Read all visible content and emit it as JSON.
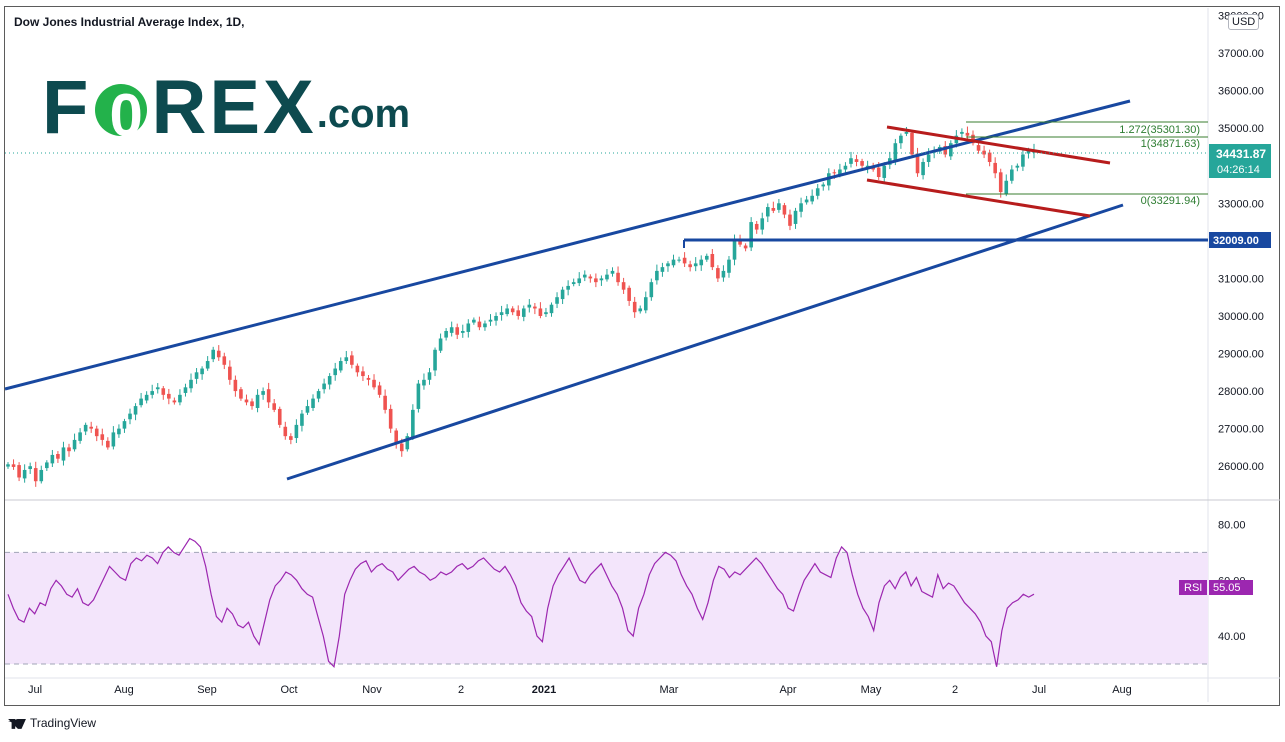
{
  "header": {
    "title": "Dow Jones Industrial Average Index, 1D,"
  },
  "logo": {
    "text_main": "F",
    "text_o": "O",
    "text_rest": "REX",
    "text_suffix": ".com"
  },
  "currency": "USD",
  "footer": {
    "brand": "TradingView"
  },
  "chart_data": {
    "type": "candlestick",
    "title": "Dow Jones Industrial Average Index, 1D,",
    "ylim": [
      25100,
      38200
    ],
    "y_ticks": [
      "38000.00",
      "37000.00",
      "36000.00",
      "35000.00",
      "34000.00",
      "33000.00",
      "32000.00",
      "31000.00",
      "30000.00",
      "29000.00",
      "28000.00",
      "27000.00",
      "26000.00"
    ],
    "x_ticks": [
      "Jul",
      "Aug",
      "Sep",
      "Oct",
      "Nov",
      "2",
      "2021",
      "Mar",
      "Apr",
      "May",
      "2",
      "Jul",
      "Aug"
    ],
    "price": {
      "last": "34431.87",
      "countdown": "04:26:14",
      "closes": [
        26050,
        25980,
        25700,
        25900,
        26000,
        25600,
        25900,
        26100,
        26300,
        26200,
        26500,
        26400,
        26700,
        26900,
        27100,
        27000,
        26800,
        26700,
        26500,
        26900,
        27000,
        27200,
        27400,
        27600,
        27800,
        27900,
        28000,
        28100,
        27900,
        27800,
        27700,
        27900,
        28100,
        28300,
        28500,
        28600,
        28800,
        29100,
        28900,
        28700,
        28300,
        28000,
        27800,
        27700,
        27600,
        27900,
        28000,
        27700,
        27500,
        27100,
        26800,
        26700,
        27100,
        27400,
        27600,
        27800,
        28000,
        28200,
        28400,
        28600,
        28800,
        28900,
        28700,
        28500,
        28400,
        28300,
        28100,
        27900,
        27500,
        27000,
        26600,
        26400,
        26800,
        27500,
        28200,
        28300,
        28500,
        29100,
        29400,
        29600,
        29700,
        29500,
        29600,
        29800,
        29900,
        29700,
        29800,
        29900,
        30000,
        30100,
        30200,
        30100,
        30000,
        30200,
        30300,
        30200,
        30000,
        30100,
        30300,
        30500,
        30700,
        30800,
        30900,
        31000,
        31100,
        31000,
        30900,
        31000,
        31100,
        31200,
        30900,
        30700,
        30400,
        30100,
        30200,
        30500,
        30900,
        31200,
        31300,
        31400,
        31500,
        31500,
        31400,
        31300,
        31400,
        31500,
        31600,
        31300,
        31000,
        31200,
        31500,
        32000,
        31900,
        31800,
        32500,
        32300,
        32600,
        32900,
        32800,
        33000,
        32700,
        32400,
        32800,
        33000,
        33100,
        33200,
        33400,
        33500,
        33800,
        33800,
        33900,
        34000,
        34200,
        34100,
        34000,
        34000,
        33900,
        33700,
        34000,
        34200,
        34600,
        34800,
        34900,
        34300,
        33800,
        34100,
        34300,
        34400,
        34500,
        34300,
        34600,
        34800,
        34900,
        34800,
        34600,
        34400,
        34300,
        34100,
        33800,
        33300,
        33600,
        33900,
        34000,
        34300,
        34400,
        34432
      ],
      "ohlc_note": ""
    },
    "fib": [
      {
        "label": "1.272(35301.30)",
        "value": 35301.3
      },
      {
        "label": "1(34871.63)",
        "value": 34871.63
      },
      {
        "label": "0(33291.94)",
        "value": 33291.94
      }
    ],
    "support": {
      "label": "32009.00",
      "value": 32009.0
    },
    "rsi": {
      "label": "RSI",
      "value": "55.05",
      "ylim": [
        25,
        87
      ],
      "ticks": [
        "80.00",
        "60.00",
        "40.00"
      ],
      "band": [
        70,
        30
      ],
      "values": [
        55,
        50,
        46,
        45,
        50,
        48,
        52,
        51,
        57,
        60,
        58,
        55,
        54,
        57,
        52,
        51,
        53,
        57,
        61,
        65,
        63,
        61,
        60,
        66,
        68,
        67,
        69,
        68,
        66,
        70,
        72,
        70,
        69,
        72,
        75,
        74,
        72,
        65,
        55,
        47,
        45,
        50,
        48,
        44,
        43,
        45,
        40,
        37,
        45,
        53,
        58,
        60,
        63,
        62,
        60,
        57,
        55,
        54,
        47,
        40,
        31,
        29,
        40,
        55,
        60,
        64,
        66,
        67,
        63,
        65,
        66,
        64,
        63,
        60,
        62,
        64,
        65,
        63,
        62,
        60,
        61,
        63,
        62,
        63,
        65,
        66,
        64,
        65,
        67,
        68,
        66,
        64,
        63,
        65,
        62,
        58,
        52,
        49,
        47,
        40,
        38,
        50,
        58,
        62,
        65,
        68,
        64,
        60,
        59,
        62,
        64,
        66,
        62,
        58,
        55,
        50,
        42,
        40,
        50,
        55,
        62,
        66,
        68,
        70,
        69,
        67,
        62,
        58,
        55,
        50,
        46,
        52,
        60,
        65,
        64,
        61,
        63,
        62,
        64,
        66,
        68,
        66,
        63,
        60,
        57,
        55,
        50,
        49,
        55,
        60,
        63,
        66,
        63,
        62,
        61,
        68,
        72,
        70,
        62,
        55,
        50,
        47,
        42,
        52,
        58,
        60,
        57,
        61,
        63,
        58,
        61,
        56,
        55,
        54,
        62,
        57,
        59,
        58,
        55,
        52,
        50,
        48,
        45,
        40,
        38,
        29,
        42,
        50,
        52,
        53,
        55,
        54,
        55.05
      ]
    }
  }
}
